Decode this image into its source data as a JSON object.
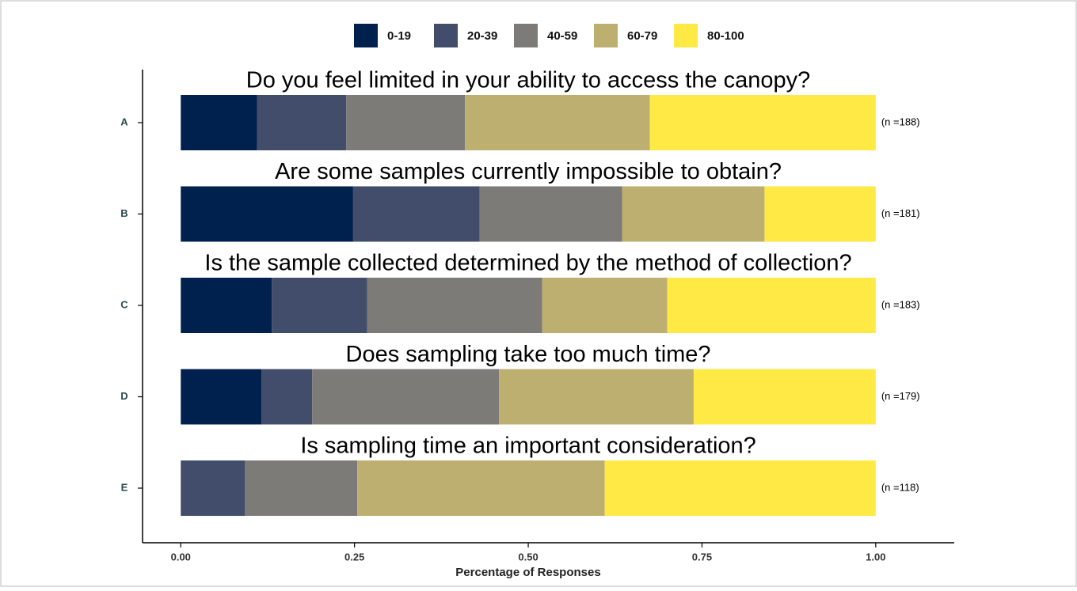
{
  "chart_data": {
    "type": "bar",
    "orientation": "horizontal",
    "stacked": true,
    "categories": [
      "A",
      "B",
      "C",
      "D",
      "E"
    ],
    "questions": [
      "Do you feel limited in your ability to access the canopy?",
      "Are some samples currently impossible to obtain?",
      "Is the sample collected determined by the method of collection?",
      "Does sampling take too much time?",
      "Is sampling time an important consideration?"
    ],
    "annotations": [
      "(n =188)",
      "(n =181)",
      "(n =183)",
      "(n =179)",
      "(n =118)"
    ],
    "series": [
      {
        "name": "0-19",
        "color": "#00204d",
        "values": [
          0.11,
          0.248,
          0.131,
          0.116,
          0.0
        ]
      },
      {
        "name": "20-39",
        "color": "#414d6b",
        "values": [
          0.128,
          0.182,
          0.137,
          0.073,
          0.092
        ]
      },
      {
        "name": "40-59",
        "color": "#7c7b78",
        "values": [
          0.171,
          0.205,
          0.252,
          0.269,
          0.162
        ]
      },
      {
        "name": "60-79",
        "color": "#bcaf6f",
        "values": [
          0.266,
          0.205,
          0.18,
          0.28,
          0.356
        ]
      },
      {
        "name": "80-100",
        "color": "#ffe945",
        "values": [
          0.325,
          0.16,
          0.3,
          0.262,
          0.39
        ]
      }
    ],
    "xlabel": "Percentage of Responses",
    "xlim": [
      -0.055,
      1.113
    ],
    "xticks": [
      {
        "value": 0,
        "label": "0.00"
      },
      {
        "value": 0.25,
        "label": "0.25"
      },
      {
        "value": 0.5,
        "label": "0.50"
      },
      {
        "value": 0.75,
        "label": "0.75"
      },
      {
        "value": 1,
        "label": "1.00"
      }
    ]
  }
}
